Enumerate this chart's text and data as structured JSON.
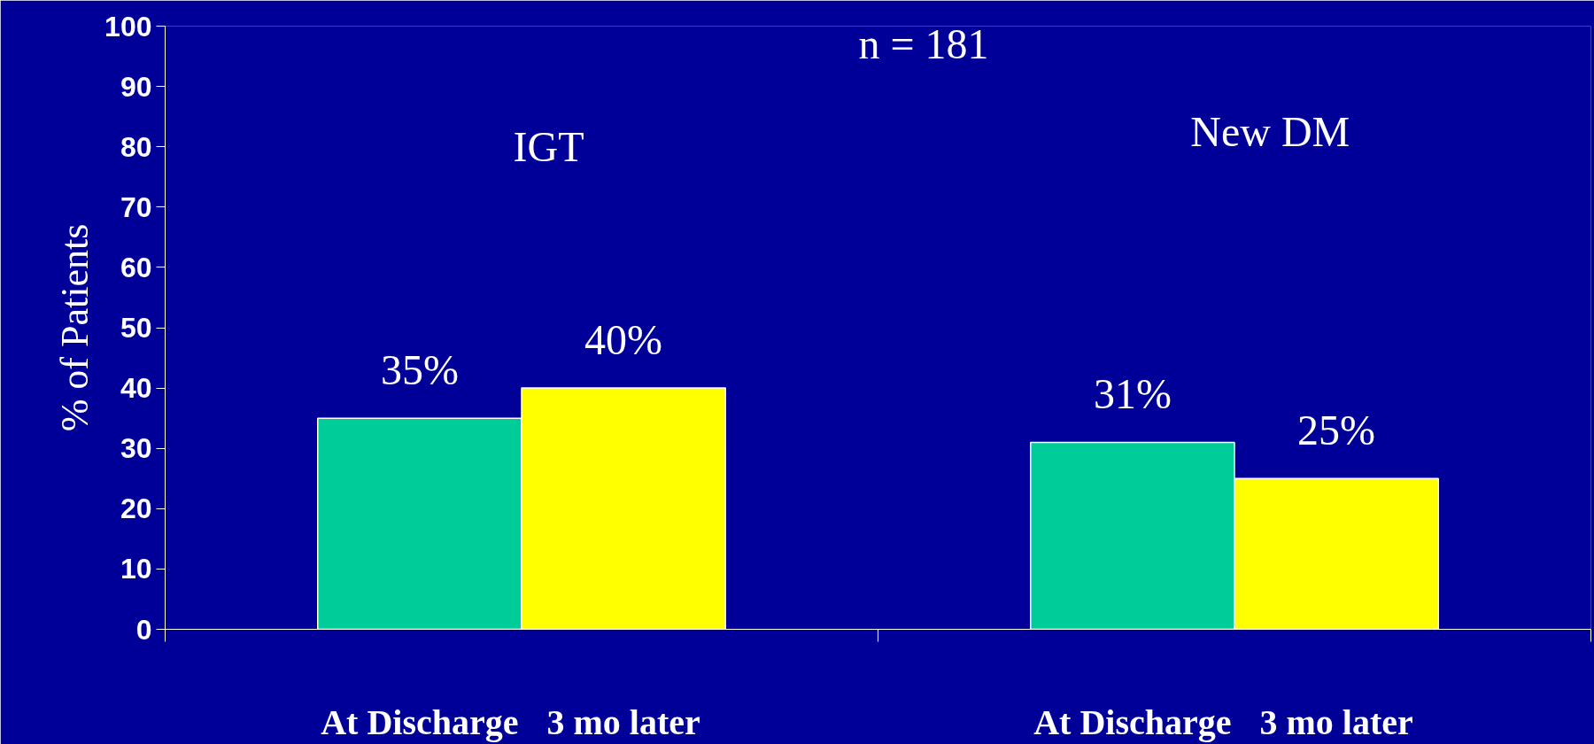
{
  "chart_data": {
    "type": "bar",
    "ylabel": "% of Patients",
    "categories": [
      "At Discharge",
      "3 mo later",
      "At Discharge",
      "3 mo later"
    ],
    "values": [
      35,
      40,
      31,
      25
    ],
    "colors": [
      "#00cc99",
      "#ffff00",
      "#00cc99",
      "#ffff00"
    ],
    "value_labels": [
      "35%",
      "40%",
      "31%",
      "25%"
    ],
    "ylim": [
      0,
      100
    ],
    "yticks": [
      0,
      10,
      20,
      30,
      40,
      50,
      60,
      70,
      80,
      90,
      100
    ],
    "grid": false,
    "annotations": [
      "n = 181",
      "IGT",
      "New DM"
    ]
  }
}
